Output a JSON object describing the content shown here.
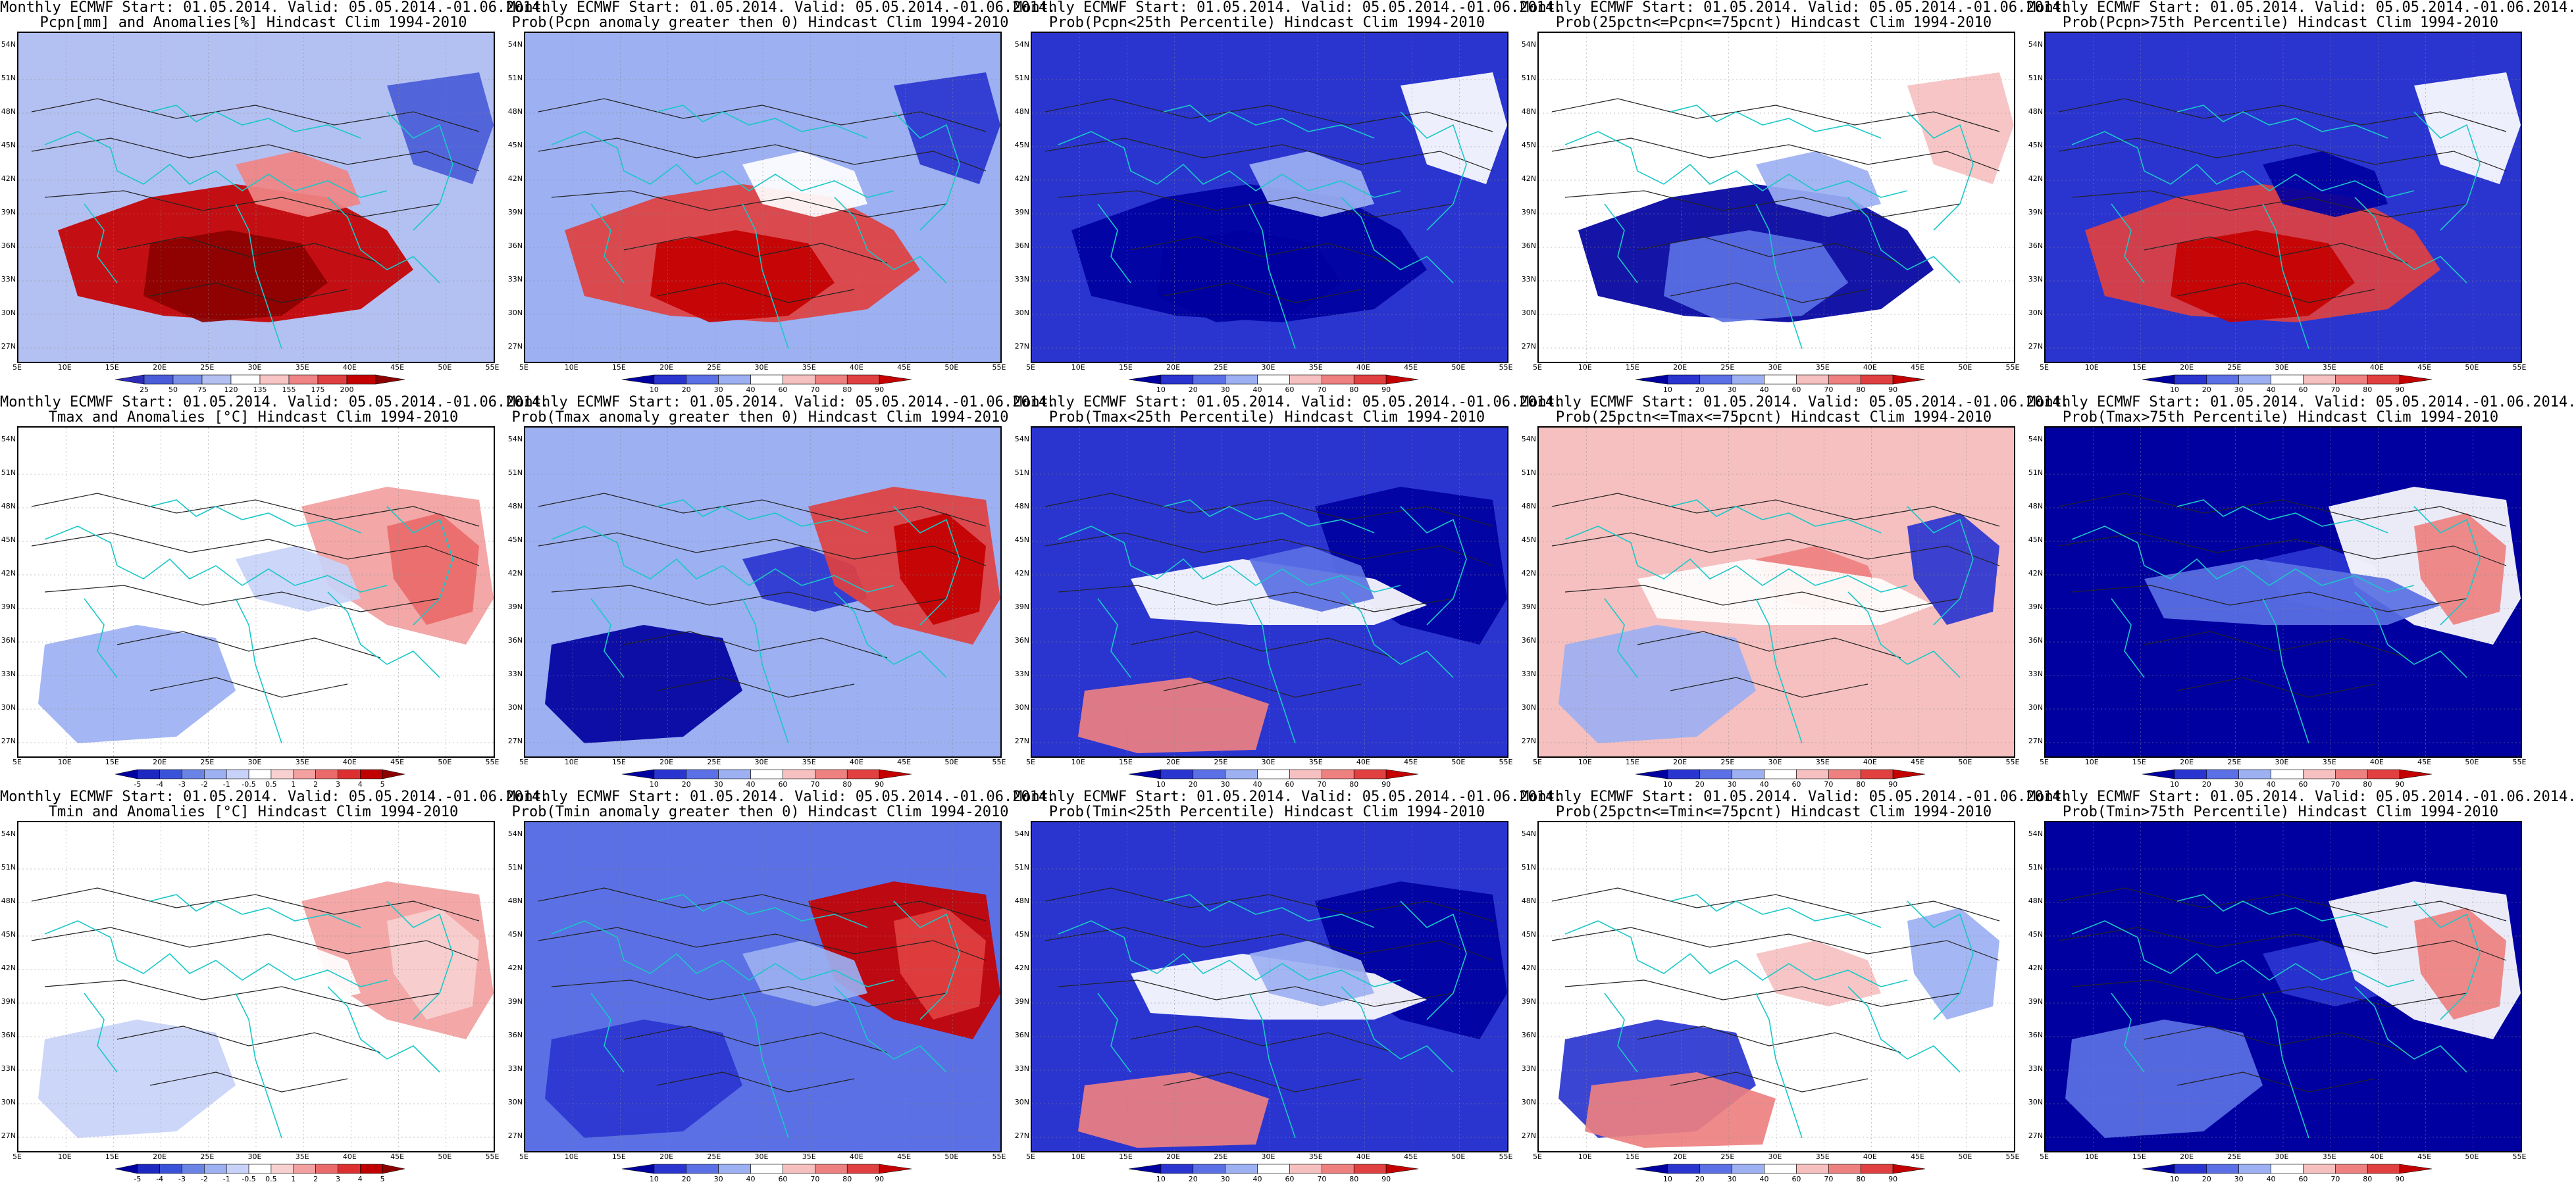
{
  "grid": {
    "lat_labels": [
      "54N",
      "51N",
      "48N",
      "45N",
      "42N",
      "39N",
      "36N",
      "33N",
      "30N",
      "27N"
    ],
    "lon_labels": [
      "5E",
      "10E",
      "15E",
      "20E",
      "25E",
      "30E",
      "35E",
      "40E",
      "45E",
      "50E",
      "55E"
    ]
  },
  "colorbars": {
    "anom_pcpn": {
      "ticks": [
        "25",
        "50",
        "75",
        "120",
        "135",
        "155",
        "175",
        "200"
      ],
      "colors": [
        "#2d2bb8",
        "#4a5cd8",
        "#7a8fe6",
        "#b3c0f2",
        "#ffffff",
        "#f8c4c4",
        "#f08484",
        "#e04040",
        "#c40000",
        "#8c0000"
      ]
    },
    "prob": {
      "ticks": [
        "10",
        "20",
        "30",
        "40",
        "60",
        "70",
        "80",
        "90"
      ],
      "colors": [
        "#0000a0",
        "#2a35d0",
        "#5a70e4",
        "#9cb0f2",
        "#ffffff",
        "#f6c0c0",
        "#ee8080",
        "#e04040",
        "#c40000"
      ]
    },
    "anom_temp": {
      "ticks": [
        "-5",
        "-4",
        "-3",
        "-2",
        "-1",
        "-0.5",
        "0.5",
        "1",
        "2",
        "3",
        "4",
        "5"
      ],
      "colors": [
        "#0000a0",
        "#1c28c0",
        "#3a52d8",
        "#6a84e6",
        "#9cb0f2",
        "#c8d2f8",
        "#ffffff",
        "#f8d0d0",
        "#f2a0a0",
        "#ea6a6a",
        "#dc3030",
        "#c00000",
        "#8c0000"
      ]
    }
  },
  "panels": [
    {
      "title1": "Monthly ECMWF Start: 01.05.2014. Valid: 05.05.2014.-01.06.2014.",
      "title2": "Pcpn[mm] and Anomalies[%] Hindcast Clim 1994-2010",
      "scheme": "anom_pcpn",
      "bg": "#b3c0f2",
      "blobs": [
        {
          "c": "#c40000",
          "k": 0
        },
        {
          "c": "#8c0000",
          "k": 1
        },
        {
          "c": "#f08484",
          "k": 2
        },
        {
          "c": "#4a5cd8",
          "k": 3
        }
      ]
    },
    {
      "title1": "Monthly ECMWF Start: 01.05.2014. Valid: 05.05.2014.-01.06.2014.",
      "title2": "Prob(Pcpn anomaly greater then 0) Hindcast Clim 1994-2010",
      "scheme": "prob",
      "bg": "#9cb0f2",
      "blobs": [
        {
          "c": "#e04040",
          "k": 0
        },
        {
          "c": "#c40000",
          "k": 1
        },
        {
          "c": "#ffffff",
          "k": 2
        },
        {
          "c": "#2a35d0",
          "k": 3
        }
      ]
    },
    {
      "title1": "Monthly ECMWF Start: 01.05.2014. Valid: 05.05.2014.-01.06.2014.",
      "title2": "Prob(Pcpn<25th Percentile) Hindcast Clim 1994-2010",
      "scheme": "prob",
      "bg": "#2a35d0",
      "blobs": [
        {
          "c": "#0000a0",
          "k": 0
        },
        {
          "c": "#0000a0",
          "k": 1
        },
        {
          "c": "#9cb0f2",
          "k": 2
        },
        {
          "c": "#ffffff",
          "k": 3
        }
      ]
    },
    {
      "title1": "Monthly ECMWF Start: 01.05.2014. Valid: 05.05.2014.-01.06.2014.",
      "title2": "Prob(25pctn<=Pcpn<=75pcnt) Hindcast Clim 1994-2010",
      "scheme": "prob",
      "bg": "#ffffff",
      "blobs": [
        {
          "c": "#0000a0",
          "k": 0
        },
        {
          "c": "#5a70e4",
          "k": 1
        },
        {
          "c": "#9cb0f2",
          "k": 2
        },
        {
          "c": "#f6c0c0",
          "k": 3
        }
      ]
    },
    {
      "title1": "Monthly ECMWF Start: 01.05.2014. Valid: 05.05.2014.-01.06.2014.",
      "title2": "Prob(Pcpn>75th Percentile) Hindcast Clim 1994-2010",
      "scheme": "prob",
      "bg": "#2a35d0",
      "blobs": [
        {
          "c": "#e04040",
          "k": 0
        },
        {
          "c": "#c40000",
          "k": 1
        },
        {
          "c": "#0000a0",
          "k": 2
        },
        {
          "c": "#ffffff",
          "k": 3
        }
      ]
    },
    {
      "title1": "Monthly ECMWF Start: 01.05.2014. Valid: 05.05.2014.-01.06.2014.",
      "title2": "Tmax and Anomalies [°C] Hindcast Clim 1994-2010",
      "scheme": "anom_temp",
      "bg": "#ffffff",
      "blobs": [
        {
          "c": "#f2a0a0",
          "k": 4
        },
        {
          "c": "#ea6a6a",
          "k": 5
        },
        {
          "c": "#c8d2f8",
          "k": 2
        },
        {
          "c": "#9cb0f2",
          "k": 6
        }
      ]
    },
    {
      "title1": "Monthly ECMWF Start: 01.05.2014. Valid: 05.05.2014.-01.06.2014.",
      "title2": "Prob(Tmax anomaly greater then 0) Hindcast Clim 1994-2010",
      "scheme": "prob",
      "bg": "#9cb0f2",
      "blobs": [
        {
          "c": "#0000a0",
          "k": 6
        },
        {
          "c": "#2a35d0",
          "k": 2
        },
        {
          "c": "#e04040",
          "k": 4
        },
        {
          "c": "#c40000",
          "k": 5
        }
      ]
    },
    {
      "title1": "Monthly ECMWF Start: 01.05.2014. Valid: 05.05.2014.-01.06.2014.",
      "title2": "Prob(Tmax<25th Percentile) Hindcast Clim 1994-2010",
      "scheme": "prob",
      "bg": "#2a35d0",
      "blobs": [
        {
          "c": "#0000a0",
          "k": 4
        },
        {
          "c": "#ffffff",
          "k": 7
        },
        {
          "c": "#ee8080",
          "k": 8
        },
        {
          "c": "#5a70e4",
          "k": 2
        }
      ]
    },
    {
      "title1": "Monthly ECMWF Start: 01.05.2014. Valid: 05.05.2014.-01.06.2014.",
      "title2": "Prob(25pctn<=Tmax<=75pcnt) Hindcast Clim 1994-2010",
      "scheme": "prob",
      "bg": "#f6c0c0",
      "blobs": [
        {
          "c": "#ee8080",
          "k": 2
        },
        {
          "c": "#9cb0f2",
          "k": 6
        },
        {
          "c": "#2a35d0",
          "k": 5
        },
        {
          "c": "#ffffff",
          "k": 7
        }
      ]
    },
    {
      "title1": "Monthly ECMWF Start: 01.05.2014. Valid: 05.05.2014.-01.06.2014.",
      "title2": "Prob(Tmax>75th Percentile) Hindcast Clim 1994-2010",
      "scheme": "prob",
      "bg": "#0000a0",
      "blobs": [
        {
          "c": "#2a35d0",
          "k": 2
        },
        {
          "c": "#ffffff",
          "k": 4
        },
        {
          "c": "#5a70e4",
          "k": 7
        },
        {
          "c": "#ee8080",
          "k": 5
        }
      ]
    },
    {
      "title1": "Monthly ECMWF Start: 01.05.2014. Valid: 05.05.2014.-01.06.2014.",
      "title2": "Tmin and Anomalies [°C] Hindcast Clim 1994-2010",
      "scheme": "anom_temp",
      "bg": "#ffffff",
      "blobs": [
        {
          "c": "#f2a0a0",
          "k": 4
        },
        {
          "c": "#f8d0d0",
          "k": 5
        },
        {
          "c": "#c8d2f8",
          "k": 6
        },
        {
          "c": "#ffffff",
          "k": 2
        }
      ]
    },
    {
      "title1": "Monthly ECMWF Start: 01.05.2014. Valid: 05.05.2014.-01.06.2014.",
      "title2": "Prob(Tmin anomaly greater then 0) Hindcast Clim 1994-2010",
      "scheme": "prob",
      "bg": "#5a70e4",
      "blobs": [
        {
          "c": "#c40000",
          "k": 4
        },
        {
          "c": "#e04040",
          "k": 5
        },
        {
          "c": "#2a35d0",
          "k": 6
        },
        {
          "c": "#9cb0f2",
          "k": 2
        }
      ]
    },
    {
      "title1": "Monthly ECMWF Start: 01.05.2014. Valid: 05.05.2014.-01.06.2014.",
      "title2": "Prob(Tmin<25th Percentile) Hindcast Clim 1994-2010",
      "scheme": "prob",
      "bg": "#2a35d0",
      "blobs": [
        {
          "c": "#0000a0",
          "k": 4
        },
        {
          "c": "#ee8080",
          "k": 8
        },
        {
          "c": "#ffffff",
          "k": 7
        },
        {
          "c": "#9cb0f2",
          "k": 2
        }
      ]
    },
    {
      "title1": "Monthly ECMWF Start: 01.05.2014. Valid: 05.05.2014.-01.06.2014.",
      "title2": "Prob(25pctn<=Tmin<=75pcnt) Hindcast Clim 1994-2010",
      "scheme": "prob",
      "bg": "#ffffff",
      "blobs": [
        {
          "c": "#f6c0c0",
          "k": 2
        },
        {
          "c": "#2a35d0",
          "k": 6
        },
        {
          "c": "#ee8080",
          "k": 8
        },
        {
          "c": "#9cb0f2",
          "k": 5
        }
      ]
    },
    {
      "title1": "Monthly ECMWF Start: 01.05.2014. Valid: 05.05.2014.-01.06.2014.",
      "title2": "Prob(Tmin>75th Percentile) Hindcast Clim 1994-2010",
      "scheme": "prob",
      "bg": "#0000a0",
      "blobs": [
        {
          "c": "#2a35d0",
          "k": 2
        },
        {
          "c": "#ffffff",
          "k": 4
        },
        {
          "c": "#ee8080",
          "k": 5
        },
        {
          "c": "#5a70e4",
          "k": 6
        }
      ]
    }
  ]
}
